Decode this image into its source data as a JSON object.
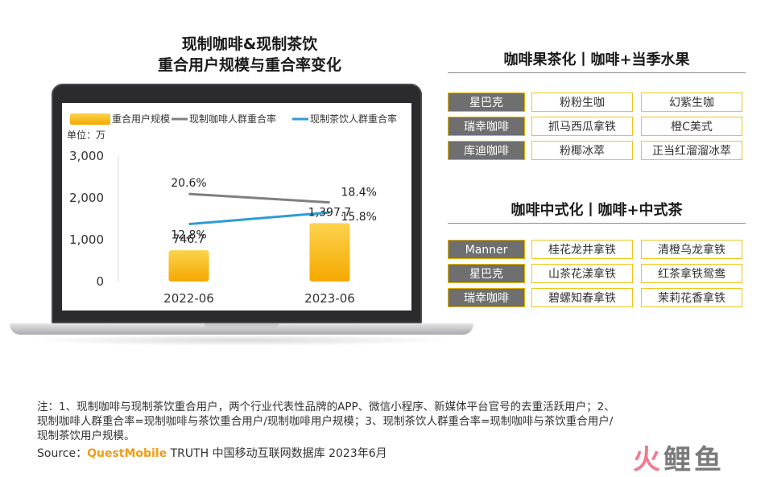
{
  "left_title": {
    "line1": "现制咖啡&现制茶饮",
    "line2": "重合用户规模与重合率变化"
  },
  "colors": {
    "bar_top": "#fcd34d",
    "bar_bottom": "#f5a800",
    "coffee_line": "#7f7f7f",
    "tea_line": "#2e9bd6",
    "brand_cell": "#6f6f6f",
    "cell_border": "#f0c419",
    "source_brand": "#f39c12"
  },
  "chart_data": {
    "type": "bar",
    "unit_label": "单位：万",
    "categories": [
      "2022-06",
      "2023-06"
    ],
    "series": [
      {
        "name": "重合用户规模",
        "type": "bar",
        "values": [
          746.7,
          1397.7
        ],
        "labels": [
          "746.7",
          "1,397.7"
        ]
      },
      {
        "name": "现制咖啡人群重合率",
        "type": "line",
        "values": [
          20.6,
          18.4
        ],
        "labels": [
          "20.6%",
          "18.4%"
        ]
      },
      {
        "name": "现制茶饮人群重合率",
        "type": "line",
        "values": [
          12.8,
          15.8
        ],
        "labels": [
          "12.8%",
          "15.8%"
        ]
      }
    ],
    "ylim": [
      0,
      3000
    ],
    "yticks": [
      0,
      1000,
      2000,
      3000
    ],
    "ytick_labels": [
      "0",
      "1,000",
      "2,000",
      "3,000"
    ],
    "legend_position": "top"
  },
  "panel1": {
    "title": "咖啡果茶化丨咖啡+当季水果",
    "rows": [
      {
        "brand": "星巴克",
        "items": [
          "粉粉生咖",
          "幻紫生咖"
        ]
      },
      {
        "brand": "瑞幸咖啡",
        "items": [
          "抓马西瓜拿铁",
          "橙C美式"
        ]
      },
      {
        "brand": "库迪咖啡",
        "items": [
          "粉椰冰萃",
          "正当红溜溜冰萃"
        ]
      }
    ]
  },
  "panel2": {
    "title": "咖啡中式化丨咖啡+中式茶",
    "rows": [
      {
        "brand": "Manner",
        "items": [
          "桂花龙井拿铁",
          "清橙乌龙拿铁"
        ]
      },
      {
        "brand": "星巴克",
        "items": [
          "山茶花漾拿铁",
          "红茶拿铁鸳鸯"
        ]
      },
      {
        "brand": "瑞幸咖啡",
        "items": [
          "碧螺知春拿铁",
          "茉莉花香拿铁"
        ]
      }
    ]
  },
  "notes": {
    "line1": "注：1、现制咖啡与现制茶饮重合用户，两个行业代表性品牌的APP、微信小程序、新媒体平台官号的去重活跃用户；2、",
    "line2": "现制咖啡人群重合率=现制咖啡与茶饮重合用户/现制咖啡用户规模；3、现制茶饮人群重合率=现制咖啡与茶饮重合用户/",
    "line3": "现制茶饮用户规模。"
  },
  "source": {
    "prefix": "Source：",
    "brand": "QuestMobile",
    "rest": " TRUTH 中国移动互联网数据库 2023年6月"
  },
  "logo": {
    "char1": "火",
    "chars": "鲤鱼"
  }
}
